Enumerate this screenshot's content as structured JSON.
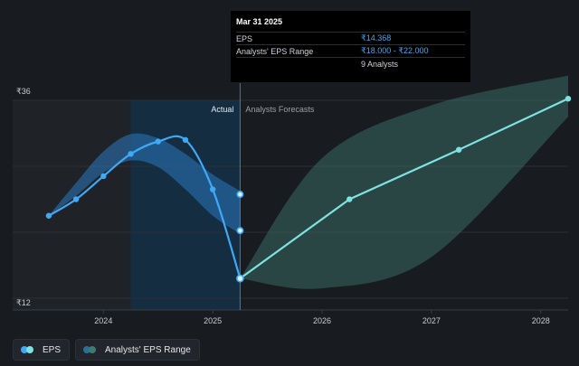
{
  "tooltip": {
    "date": "Mar 31 2025",
    "rows": [
      {
        "label": "EPS",
        "value": "₹14.368"
      },
      {
        "label": "Analysts' EPS Range",
        "value": "₹18.000 - ₹22.000"
      },
      {
        "label": "",
        "value": "9 Analysts"
      }
    ]
  },
  "legend": {
    "items": [
      {
        "label": "EPS",
        "color_a": "#3fa9f5",
        "color_b": "#7ee3e0"
      },
      {
        "label": "Analysts' EPS Range",
        "color_a": "#2a6f96",
        "color_b": "#3e7a72"
      }
    ]
  },
  "chart_data": {
    "type": "line",
    "y_ticks": [
      {
        "value": 36,
        "label": "₹36"
      },
      {
        "value": 12,
        "label": "₹12"
      }
    ],
    "x_ticks": [
      {
        "value": 2024.0,
        "label": "2024"
      },
      {
        "value": 2025.0,
        "label": "2025"
      },
      {
        "value": 2026.0,
        "label": "2026"
      },
      {
        "value": 2027.0,
        "label": "2027"
      },
      {
        "value": 2028.0,
        "label": "2028"
      }
    ],
    "xlim": [
      2023.17,
      2028.25
    ],
    "ylim": [
      12,
      36
    ],
    "divider_x": 2025.25,
    "region_labels": {
      "actual": "Actual",
      "forecast": "Analysts Forecasts"
    },
    "colors": {
      "eps_actual": "#3fa9f5",
      "eps_forecast": "#7ee3e0",
      "actual_band": "#2a78c0",
      "forecast_band": "#3e7a72",
      "highlight_region": "#13324a"
    },
    "series": [
      {
        "name": "EPS",
        "points": [
          {
            "x": 2023.5,
            "y": 22.0
          },
          {
            "x": 2023.75,
            "y": 24.0
          },
          {
            "x": 2024.0,
            "y": 26.8
          },
          {
            "x": 2024.25,
            "y": 29.5
          },
          {
            "x": 2024.5,
            "y": 31.0
          },
          {
            "x": 2024.75,
            "y": 31.2
          },
          {
            "x": 2025.0,
            "y": 25.2
          },
          {
            "x": 2025.25,
            "y": 14.4
          }
        ]
      },
      {
        "name": "EPS forecast",
        "points": [
          {
            "x": 2025.25,
            "y": 14.4
          },
          {
            "x": 2026.25,
            "y": 24.0
          },
          {
            "x": 2027.25,
            "y": 30.0
          },
          {
            "x": 2028.25,
            "y": 36.2
          }
        ]
      },
      {
        "name": "Analysts' EPS Range",
        "points": [
          {
            "x": 2025.25,
            "y": 14.4,
            "low": 14.4,
            "high": 14.4
          },
          {
            "x": 2026.0,
            "y": 18.6,
            "low": 13.2,
            "high": 29.0
          },
          {
            "x": 2027.0,
            "y": 24.8,
            "low": 17.0,
            "high": 35.4
          },
          {
            "x": 2028.25,
            "y": 36.2,
            "low": 34.0,
            "high": 39.0
          }
        ]
      }
    ],
    "actual_band": {
      "upper": [
        [
          2023.5,
          22.0
        ],
        [
          2023.75,
          26.0
        ],
        [
          2024.0,
          29.8
        ],
        [
          2024.25,
          31.9
        ],
        [
          2024.5,
          31.4
        ],
        [
          2024.75,
          29.5
        ],
        [
          2025.0,
          27.0
        ],
        [
          2025.25,
          25.0
        ]
      ],
      "lower": [
        [
          2023.5,
          22.0
        ],
        [
          2023.75,
          24.4
        ],
        [
          2024.0,
          27.2
        ],
        [
          2024.25,
          28.7
        ],
        [
          2024.5,
          27.9
        ],
        [
          2024.75,
          25.2
        ],
        [
          2025.0,
          22.0
        ],
        [
          2025.25,
          19.8
        ]
      ]
    },
    "actual_band_markers": [
      {
        "x": 2025.25,
        "y": 24.6
      },
      {
        "x": 2025.25,
        "y": 20.2
      }
    ]
  }
}
